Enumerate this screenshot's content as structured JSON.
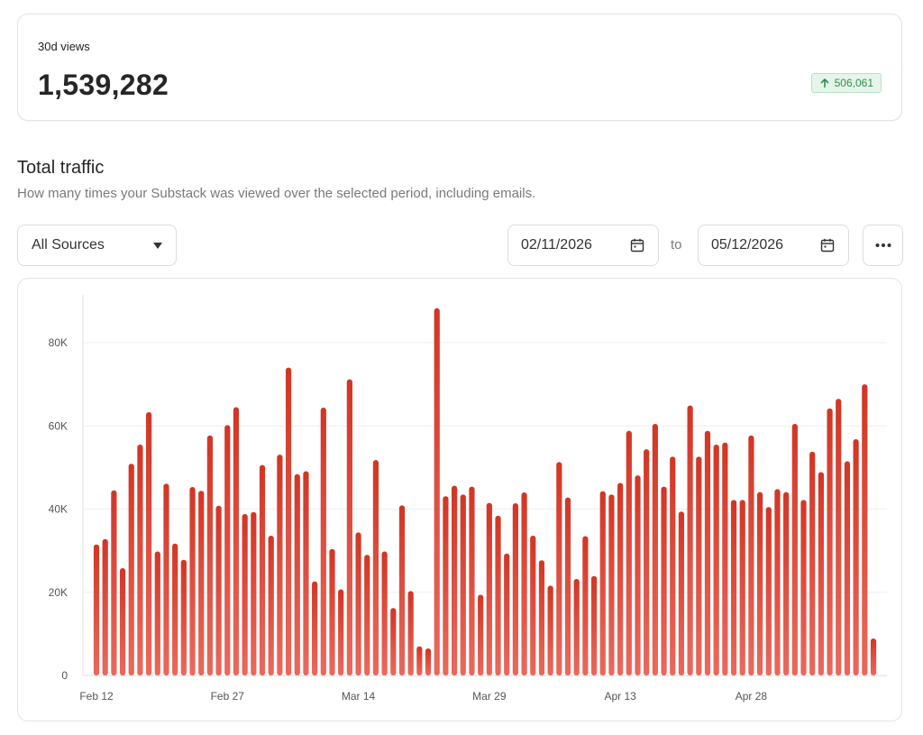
{
  "views_card": {
    "label": "30d views",
    "value": "1,539,282",
    "delta": "506,061",
    "delta_color": "#2f8f4e"
  },
  "traffic": {
    "title": "Total traffic",
    "subtitle": "How many times your Substack was viewed over the selected period, including emails."
  },
  "controls": {
    "source_select": "All Sources",
    "start_date": "02/11/2026",
    "to_label": "to",
    "end_date": "05/12/2026",
    "more_icon": "more-horizontal-icon",
    "calendar_icon": "calendar-icon"
  },
  "chart_data": {
    "type": "bar",
    "bar_color": "#d63a2a",
    "ylim": [
      0,
      90000
    ],
    "yticks": [
      0,
      20000,
      40000,
      60000,
      80000
    ],
    "ytick_labels": [
      "0",
      "20K",
      "40K",
      "60K",
      "80K"
    ],
    "x_start": "2026-02-12",
    "xtick_labels": [
      "Feb 12",
      "Feb 27",
      "Mar 14",
      "Mar 29",
      "Apr 13",
      "Apr 28"
    ],
    "xtick_index": [
      0,
      15,
      30,
      45,
      60,
      75
    ],
    "values": [
      31500,
      32800,
      44500,
      25800,
      50900,
      55500,
      63300,
      29800,
      46100,
      31700,
      27800,
      45300,
      44400,
      57700,
      40800,
      60200,
      64500,
      38800,
      39300,
      50600,
      33600,
      53100,
      74000,
      48400,
      49100,
      22600,
      64400,
      30400,
      20700,
      71200,
      34400,
      29000,
      51800,
      29800,
      16200,
      40900,
      20300,
      7000,
      6500,
      88300,
      43100,
      45600,
      43500,
      45400,
      19400,
      41500,
      38400,
      29300,
      41400,
      44000,
      33600,
      27700,
      21600,
      51300,
      42800,
      23200,
      33500,
      23900,
      44300,
      43500,
      46300,
      58800,
      48100,
      54400,
      60500,
      45400,
      52600,
      39400,
      64900,
      52600,
      58800,
      55500,
      56000,
      42200,
      42200,
      57700,
      44100,
      40500,
      44800,
      44100,
      60500,
      42200,
      53800,
      48900,
      64200,
      66500,
      51500,
      56800,
      70000,
      8900
    ]
  }
}
